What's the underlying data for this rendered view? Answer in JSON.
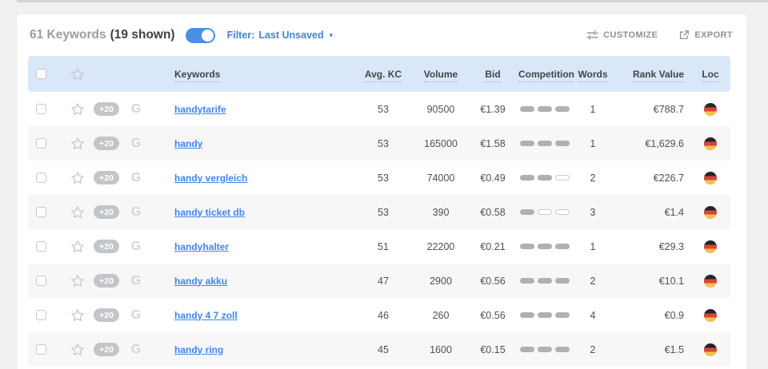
{
  "header": {
    "keywords_count": "61 Keywords",
    "shown_count": "(19 shown)",
    "filter_label": "Filter:",
    "filter_value": "Last Unsaved",
    "filter_caret": "▾",
    "customize_label": "CUSTOMIZE",
    "export_label": "EXPORT"
  },
  "table": {
    "columns": {
      "keywords": "Keywords",
      "avg_kc": "Avg. KC",
      "volume": "Volume",
      "bid": "Bid",
      "competition": "Competition",
      "words": "Words",
      "rank_value": "Rank Value",
      "loc": "Loc"
    },
    "rows": [
      {
        "badge": "+20",
        "keyword": "handytarife",
        "avg_kc": "53",
        "volume": "90500",
        "bid": "€1.39",
        "competition": 3,
        "words": "1",
        "rank_value": "€788.7",
        "loc": "DE"
      },
      {
        "badge": "+20",
        "keyword": "handy",
        "avg_kc": "53",
        "volume": "165000",
        "bid": "€1.58",
        "competition": 3,
        "words": "1",
        "rank_value": "€1,629.6",
        "loc": "DE"
      },
      {
        "badge": "+20",
        "keyword": "handy vergleich",
        "avg_kc": "53",
        "volume": "74000",
        "bid": "€0.49",
        "competition": 2,
        "words": "2",
        "rank_value": "€226.7",
        "loc": "DE"
      },
      {
        "badge": "+20",
        "keyword": "handy ticket db",
        "avg_kc": "53",
        "volume": "390",
        "bid": "€0.58",
        "competition": 1,
        "words": "3",
        "rank_value": "€1.4",
        "loc": "DE"
      },
      {
        "badge": "+20",
        "keyword": "handyhalter",
        "avg_kc": "51",
        "volume": "22200",
        "bid": "€0.21",
        "competition": 3,
        "words": "1",
        "rank_value": "€29.3",
        "loc": "DE"
      },
      {
        "badge": "+20",
        "keyword": "handy akku",
        "avg_kc": "47",
        "volume": "2900",
        "bid": "€0.56",
        "competition": 3,
        "words": "2",
        "rank_value": "€10.1",
        "loc": "DE"
      },
      {
        "badge": "+20",
        "keyword": "handy 4 7 zoll",
        "avg_kc": "46",
        "volume": "260",
        "bid": "€0.56",
        "competition": 3,
        "words": "4",
        "rank_value": "€0.9",
        "loc": "DE"
      },
      {
        "badge": "+20",
        "keyword": "handy ring",
        "avg_kc": "45",
        "volume": "1600",
        "bid": "€0.15",
        "competition": 3,
        "words": "2",
        "rank_value": "€1.5",
        "loc": "DE"
      }
    ]
  },
  "icons": {
    "customize": "sliders-icon",
    "export": "external-link-icon",
    "star": "star-icon",
    "google": "google-g-icon",
    "flag": "germany-flag-icon",
    "toggle": "filter-toggle-on"
  },
  "colors": {
    "page_bg": "#f1f1f2",
    "accent_blue": "#4285f4",
    "toggle_on": "#4a90e2",
    "table_header_bg": "#d9e7f8",
    "muted_gray": "#9a9da1",
    "dark_text": "#3c4045",
    "flag_black": "#262626",
    "flag_red": "#d8453c",
    "flag_gold": "#f6c34c"
  }
}
